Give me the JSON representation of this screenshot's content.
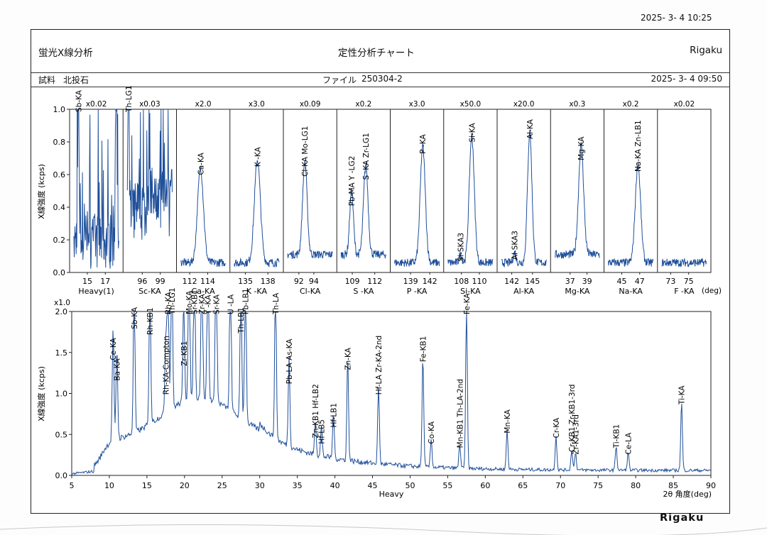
{
  "header": {
    "print_datetime": "2025- 3- 4 10:25",
    "method": "蛍光X線分析",
    "chart_title": "定性分析チャート",
    "brand": "Rigaku",
    "sample_label": "試料",
    "sample_name": "北投石",
    "file_label": "ファイル",
    "file_name": "250304-2",
    "measure_datetime": "2025- 3- 4 09:50"
  },
  "footer_logo": "Rigaku",
  "chart_data": [
    {
      "type": "line",
      "ylabel": "X線強度 (kcps)",
      "ylim": [
        0,
        1.0
      ],
      "yticks": [
        "0.0",
        "0.2",
        "0.4",
        "0.6",
        "0.8",
        "1.0"
      ],
      "unit_label": "(deg)",
      "panels": [
        {
          "name": "Heavy(1)",
          "scale": "x0.02",
          "xlim": [
            13.5,
            18.5
          ],
          "ticks": [
            15,
            17
          ],
          "peaks": [
            {
              "x": 14.0,
              "h": 1.0,
              "w": 0.08,
              "label": "Sb-KA"
            },
            {
              "x": 18.2,
              "h": 1.0,
              "w": 0.08,
              "label": ""
            }
          ]
        },
        {
          "name": "Sc-KA",
          "scale": "x0.03",
          "xlim": [
            93.5,
            101
          ],
          "ticks": [
            96,
            99
          ],
          "peaks": [
            {
              "x": 93.7,
              "h": 1.0,
              "w": 0.1,
              "label": "Th-LG1"
            }
          ]
        },
        {
          "name": "Ca-KA",
          "scale": "x2.0",
          "xlim": [
            111,
            116
          ],
          "ticks": [
            112,
            114
          ],
          "peaks": [
            {
              "x": 113.2,
              "h": 0.58,
              "w": 0.33,
              "label": "Ca-KA"
            }
          ]
        },
        {
          "name": "K -KA",
          "scale": "x3.0",
          "xlim": [
            133.5,
            139.5
          ],
          "ticks": [
            135,
            138
          ],
          "peaks": [
            {
              "x": 136.6,
              "h": 0.63,
              "w": 0.4,
              "label": "K -KA"
            }
          ]
        },
        {
          "name": "Cl-KA",
          "scale": "x0.09",
          "xlim": [
            90.5,
            96.5
          ],
          "ticks": [
            92,
            94
          ],
          "peaks": [
            {
              "x": 92.8,
              "h": 0.57,
              "w": 0.3,
              "label": "Cl-KA Mo-LG1"
            }
          ]
        },
        {
          "name": "S -KA",
          "scale": "x0.2",
          "xlim": [
            107.5,
            113.5
          ],
          "ticks": [
            109,
            112
          ],
          "peaks": [
            {
              "x": 108.9,
              "h": 0.39,
              "w": 0.25,
              "label": "Pb-MA Y -LG2"
            },
            {
              "x": 110.8,
              "h": 0.55,
              "w": 0.3,
              "label": "S -KA Zr-LG1"
            }
          ]
        },
        {
          "name": "P -KA",
          "scale": "x3.0",
          "xlim": [
            136.5,
            143.5
          ],
          "ticks": [
            139,
            142
          ],
          "peaks": [
            {
              "x": 140.9,
              "h": 0.71,
              "w": 0.4,
              "label": "P -KA"
            }
          ]
        },
        {
          "name": "Si-KA",
          "scale": "x50.0",
          "xlim": [
            106.5,
            111.5
          ],
          "ticks": [
            108,
            110
          ],
          "peaks": [
            {
              "x": 107.9,
              "h": 0.05,
              "w": 0.15,
              "label": "Si-SKA3"
            },
            {
              "x": 109.15,
              "h": 0.78,
              "w": 0.28,
              "label": "Si-KA"
            }
          ]
        },
        {
          "name": "Al-KA",
          "scale": "x20.0",
          "xlim": [
            140.5,
            147
          ],
          "ticks": [
            142,
            145
          ],
          "peaks": [
            {
              "x": 142.4,
              "h": 0.06,
              "w": 0.2,
              "label": "Al-SKA3"
            },
            {
              "x": 144.6,
              "h": 0.8,
              "w": 0.32,
              "label": "Al-KA"
            }
          ]
        },
        {
          "name": "Mg-KA",
          "scale": "x0.3",
          "xlim": [
            35.2,
            40.5
          ],
          "ticks": [
            37,
            39
          ],
          "peaks": [
            {
              "x": 38.3,
              "h": 0.67,
              "w": 0.3,
              "label": "Mg-KA"
            }
          ]
        },
        {
          "name": "Na-KA",
          "scale": "x0.2",
          "xlim": [
            43.5,
            48.5
          ],
          "ticks": [
            45,
            47
          ],
          "peaks": [
            {
              "x": 46.8,
              "h": 0.6,
              "w": 0.3,
              "label": "Na-KA Zn-LB1"
            }
          ]
        },
        {
          "name": "F -KA",
          "scale": "x0.02",
          "xlim": [
            72,
            77
          ],
          "ticks": [
            73,
            75
          ],
          "peaks": []
        }
      ]
    },
    {
      "type": "line",
      "name": "Heavy",
      "scale": "x1.0",
      "ylabel": "X線強度 (kcps)",
      "xlabel": "2θ 角度(deg)",
      "xlim": [
        5,
        90
      ],
      "ylim": [
        0,
        2.0
      ],
      "xticks": [
        5,
        10,
        15,
        20,
        25,
        30,
        35,
        40,
        45,
        50,
        55,
        60,
        65,
        70,
        75,
        80,
        85,
        90
      ],
      "yticks": [
        "0.0",
        "0.5",
        "1.0",
        "1.5",
        "2.0"
      ],
      "peaks": [
        {
          "x": 10.5,
          "h": 1.37,
          "label": "Ce-KA"
        },
        {
          "x": 11.0,
          "h": 1.12,
          "label": "Ba-KA"
        },
        {
          "x": 13.3,
          "h": 1.75,
          "label": "Sb-KA"
        },
        {
          "x": 15.4,
          "h": 1.68,
          "label": "Rh-KB1"
        },
        {
          "x": 17.5,
          "h": 0.95,
          "label": "Rh-KA-Compton"
        },
        {
          "x": 17.8,
          "h": 2.0,
          "label": "Rh-KA"
        },
        {
          "x": 18.3,
          "h": 2.0,
          "label": "Th-LG1"
        },
        {
          "x": 19.9,
          "h": 1.3,
          "label": "Zr-KB1"
        },
        {
          "x": 20.6,
          "h": 2.0,
          "label": "Mo-KA"
        },
        {
          "x": 21.3,
          "h": 2.0,
          "label": "Sr-KB1"
        },
        {
          "x": 22.3,
          "h": 2.0,
          "label": "Zr-KA"
        },
        {
          "x": 23.1,
          "h": 2.0,
          "label": "Y -KA"
        },
        {
          "x": 24.2,
          "h": 2.0,
          "label": "Sr-KA"
        },
        {
          "x": 26.1,
          "h": 2.0,
          "label": "U -LA"
        },
        {
          "x": 27.5,
          "h": 1.7,
          "label": "Th-LB1"
        },
        {
          "x": 28.1,
          "h": 2.0,
          "label": "Pb-LB1"
        },
        {
          "x": 32.1,
          "h": 2.0,
          "label": "Th-LA"
        },
        {
          "x": 33.9,
          "h": 1.08,
          "label": "Pb-LA As-KA"
        },
        {
          "x": 37.4,
          "h": 0.42,
          "label": "Zn-KB1 Hf-LB2"
        },
        {
          "x": 38.2,
          "h": 0.35,
          "label": "Hf-LB5"
        },
        {
          "x": 39.8,
          "h": 0.55,
          "label": "Hf-LB1"
        },
        {
          "x": 41.7,
          "h": 1.25,
          "label": "Zn-KA"
        },
        {
          "x": 45.8,
          "h": 0.95,
          "label": "Hf-LA Zr-KA-2nd"
        },
        {
          "x": 51.7,
          "h": 1.35,
          "label": "Fe-KB1"
        },
        {
          "x": 52.8,
          "h": 0.35,
          "label": "Co-KA"
        },
        {
          "x": 56.6,
          "h": 0.3,
          "label": "Mn-KB1 Th-LA-2nd"
        },
        {
          "x": 57.5,
          "h": 2.0,
          "label": "Fe-KA"
        },
        {
          "x": 62.9,
          "h": 0.48,
          "label": "Mn-KA"
        },
        {
          "x": 69.4,
          "h": 0.42,
          "label": "Cr-KA"
        },
        {
          "x": 71.5,
          "h": 0.25,
          "label": "Cr-KB1 Zr-KB1-3rd"
        },
        {
          "x": 72.0,
          "h": 0.22,
          "label": "Zr-KA1-3rd"
        },
        {
          "x": 77.4,
          "h": 0.3,
          "label": "Ti-KB1"
        },
        {
          "x": 79.0,
          "h": 0.22,
          "label": "Ce-LA"
        },
        {
          "x": 86.1,
          "h": 0.83,
          "label": "Ti-KA"
        }
      ]
    }
  ]
}
